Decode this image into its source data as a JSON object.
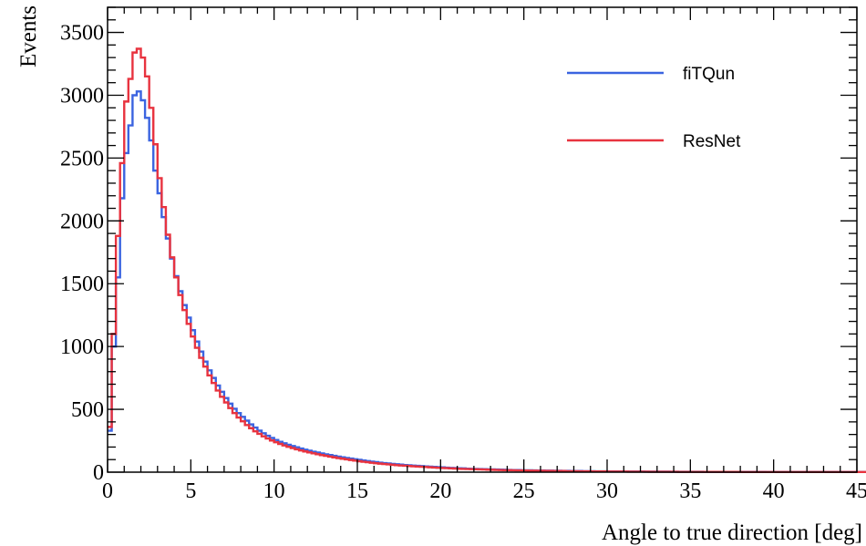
{
  "chart_data": {
    "type": "line",
    "xlabel": "Angle to true direction [deg]",
    "ylabel": "Events",
    "xlim": [
      0,
      45
    ],
    "ylim": [
      0,
      3700
    ],
    "xticks": [
      "0",
      "5",
      "10",
      "15",
      "20",
      "25",
      "30",
      "35",
      "40",
      "45"
    ],
    "yticks": [
      "0",
      "500",
      "1000",
      "1500",
      "2000",
      "2500",
      "3000",
      "3500"
    ],
    "xtick_values": [
      0,
      5,
      10,
      15,
      20,
      25,
      30,
      35,
      40,
      45
    ],
    "ytick_values": [
      0,
      500,
      1000,
      1500,
      2000,
      2500,
      3000,
      3500
    ],
    "bin_width": 0.25,
    "legend_position": "top-right",
    "grid": false,
    "series": [
      {
        "name": "fiTQun",
        "color": "#3b64e0",
        "values": [
          330,
          1000,
          1550,
          2180,
          2540,
          2760,
          3000,
          3030,
          2960,
          2820,
          2640,
          2400,
          2220,
          2030,
          1860,
          1700,
          1560,
          1440,
          1330,
          1230,
          1130,
          1040,
          960,
          880,
          810,
          750,
          690,
          640,
          590,
          545,
          505,
          470,
          440,
          410,
          380,
          355,
          330,
          310,
          290,
          272,
          256,
          242,
          230,
          218,
          208,
          198,
          188,
          179,
          171,
          163,
          156,
          149,
          142,
          136,
          130,
          124,
          118,
          113,
          108,
          103,
          98,
          93,
          88,
          84,
          80,
          76,
          72,
          69,
          66,
          63,
          60,
          57,
          55,
          52,
          50,
          48,
          46,
          44,
          42,
          40,
          38,
          36,
          34,
          33,
          31,
          30,
          28,
          27,
          26,
          25,
          24,
          23,
          22,
          21,
          20,
          19,
          18,
          17,
          17,
          16,
          15,
          15,
          14,
          13,
          13,
          12,
          12,
          11,
          11,
          10,
          10,
          9,
          9,
          9,
          8,
          8,
          8,
          7,
          7,
          7,
          6,
          6,
          6,
          6,
          5,
          5,
          5,
          5,
          5,
          4,
          4,
          4,
          4,
          4,
          4,
          3,
          3,
          3,
          3,
          3,
          3,
          3,
          3,
          2,
          2,
          2,
          2,
          2,
          2,
          2,
          2,
          2,
          2,
          2,
          2,
          2,
          2,
          2,
          1,
          1,
          1,
          1,
          1,
          1,
          1,
          1,
          1,
          1,
          1,
          1,
          1,
          1,
          1,
          1,
          1,
          1,
          1,
          1,
          1,
          1,
          1,
          1,
          1,
          1,
          1,
          1,
          1,
          1
        ]
      },
      {
        "name": "ResNet",
        "color": "#e8333f",
        "values": [
          360,
          1100,
          1880,
          2460,
          2950,
          3130,
          3340,
          3370,
          3300,
          3150,
          2900,
          2610,
          2340,
          2110,
          1890,
          1710,
          1550,
          1410,
          1290,
          1180,
          1080,
          990,
          910,
          840,
          770,
          710,
          650,
          600,
          555,
          510,
          470,
          435,
          405,
          375,
          350,
          325,
          305,
          285,
          268,
          252,
          238,
          225,
          213,
          202,
          192,
          182,
          173,
          165,
          157,
          150,
          143,
          136,
          130,
          124,
          118,
          112,
          107,
          102,
          97,
          92,
          87,
          83,
          79,
          75,
          71,
          68,
          65,
          62,
          59,
          56,
          53,
          51,
          49,
          47,
          45,
          43,
          41,
          39,
          37,
          35,
          33,
          32,
          30,
          29,
          27,
          26,
          25,
          24,
          23,
          22,
          21,
          20,
          19,
          18,
          17,
          16,
          16,
          15,
          14,
          14,
          13,
          12,
          12,
          11,
          11,
          10,
          10,
          9,
          9,
          9,
          8,
          8,
          8,
          7,
          7,
          7,
          6,
          6,
          6,
          6,
          5,
          5,
          5,
          5,
          5,
          4,
          4,
          4,
          4,
          4,
          3,
          3,
          3,
          3,
          3,
          3,
          3,
          2,
          2,
          2,
          2,
          2,
          2,
          2,
          2,
          2,
          2,
          2,
          2,
          2,
          2,
          2,
          1,
          1,
          1,
          1,
          1,
          1,
          1,
          1,
          1,
          1,
          1,
          1,
          1,
          1,
          1,
          1,
          1,
          1,
          1,
          1,
          1,
          1,
          1,
          1,
          1,
          1,
          1,
          1,
          1,
          1,
          1,
          1,
          1,
          1,
          1,
          1
        ]
      }
    ]
  }
}
